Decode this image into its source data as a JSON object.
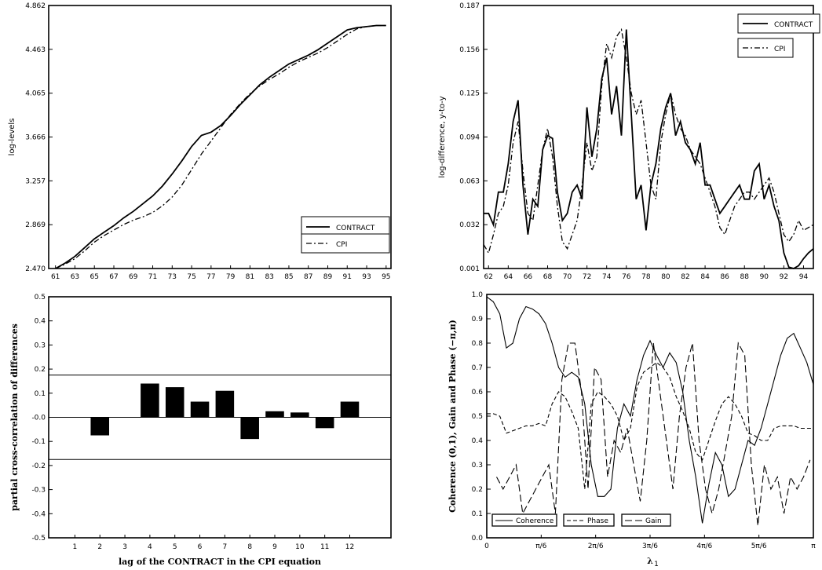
{
  "chart_data": [
    {
      "type": "line",
      "ylabel": "log-levels",
      "xlabel": "",
      "xlim": [
        60.3,
        95.5
      ],
      "ylim": [
        2.47,
        4.862
      ],
      "yticks": [
        "2.470",
        "2.869",
        "3.257",
        "3.666",
        "4.065",
        "4.463",
        "4.862"
      ],
      "xticks": [
        "61",
        "63",
        "65",
        "67",
        "69",
        "71",
        "73",
        "75",
        "77",
        "79",
        "81",
        "83",
        "85",
        "87",
        "89",
        "91",
        "93",
        "95"
      ],
      "legend": {
        "position": "bottom-right"
      },
      "series": [
        {
          "name": "CONTRACT",
          "style": "solid",
          "x": [
            61,
            62,
            63,
            64,
            65,
            66,
            67,
            68,
            69,
            70,
            71,
            72,
            73,
            74,
            75,
            76,
            77,
            78,
            79,
            80,
            81,
            82,
            83,
            84,
            85,
            86,
            87,
            88,
            89,
            90,
            91,
            92,
            93,
            94,
            95
          ],
          "y": [
            2.47,
            2.52,
            2.58,
            2.66,
            2.74,
            2.8,
            2.86,
            2.93,
            2.99,
            3.06,
            3.13,
            3.22,
            3.33,
            3.45,
            3.58,
            3.68,
            3.71,
            3.77,
            3.86,
            3.96,
            4.05,
            4.14,
            4.21,
            4.27,
            4.33,
            4.37,
            4.41,
            4.46,
            4.52,
            4.58,
            4.64,
            4.66,
            4.67,
            4.68,
            4.68
          ]
        },
        {
          "name": "CPI",
          "style": "dash-dot",
          "x": [
            61,
            62,
            63,
            64,
            65,
            66,
            67,
            68,
            69,
            70,
            71,
            72,
            73,
            74,
            75,
            76,
            77,
            78,
            79,
            80,
            81,
            82,
            83,
            84,
            85,
            86,
            87,
            88,
            89,
            90,
            91,
            92,
            93,
            94,
            95
          ],
          "y": [
            2.47,
            2.51,
            2.56,
            2.63,
            2.71,
            2.77,
            2.82,
            2.87,
            2.91,
            2.94,
            2.98,
            3.04,
            3.12,
            3.23,
            3.37,
            3.51,
            3.63,
            3.75,
            3.87,
            3.97,
            4.06,
            4.13,
            4.19,
            4.24,
            4.3,
            4.35,
            4.39,
            4.43,
            4.48,
            4.54,
            4.6,
            4.65,
            4.67,
            4.68,
            4.68
          ]
        }
      ]
    },
    {
      "type": "line",
      "ylabel": "log-difference, y-to-y",
      "xlabel": "",
      "xlim": [
        61.5,
        95.0
      ],
      "ylim": [
        0.001,
        0.187
      ],
      "yticks": [
        "0.001",
        "0.032",
        "0.063",
        "0.094",
        "0.125",
        "0.156",
        "0.187"
      ],
      "xticks": [
        "62",
        "64",
        "66",
        "68",
        "70",
        "72",
        "74",
        "76",
        "78",
        "80",
        "82",
        "84",
        "86",
        "88",
        "90",
        "92",
        "94"
      ],
      "legend": {
        "position": "top-right"
      },
      "series": [
        {
          "name": "CONTRACT",
          "style": "solid",
          "x": [
            61.5,
            62,
            62.5,
            63,
            63.5,
            64,
            64.5,
            65,
            65.5,
            66,
            66.5,
            67,
            67.5,
            68,
            68.5,
            69,
            69.5,
            70,
            70.5,
            71,
            71.5,
            72,
            72.5,
            73,
            73.5,
            74,
            74.5,
            75,
            75.5,
            76,
            76.5,
            77,
            77.5,
            78,
            78.5,
            79,
            79.5,
            80,
            80.5,
            81,
            81.5,
            82,
            82.5,
            83,
            83.5,
            84,
            84.5,
            85,
            85.5,
            86,
            86.5,
            87,
            87.5,
            88,
            88.5,
            89,
            89.5,
            90,
            90.5,
            91,
            91.5,
            92,
            92.5,
            93,
            93.5,
            94,
            94.5,
            95
          ],
          "y": [
            0.04,
            0.04,
            0.032,
            0.055,
            0.055,
            0.075,
            0.105,
            0.12,
            0.06,
            0.025,
            0.05,
            0.045,
            0.085,
            0.095,
            0.093,
            0.055,
            0.035,
            0.04,
            0.055,
            0.06,
            0.05,
            0.115,
            0.08,
            0.1,
            0.135,
            0.15,
            0.11,
            0.13,
            0.095,
            0.17,
            0.11,
            0.05,
            0.06,
            0.028,
            0.06,
            0.075,
            0.1,
            0.115,
            0.125,
            0.095,
            0.105,
            0.09,
            0.085,
            0.075,
            0.09,
            0.06,
            0.06,
            0.05,
            0.04,
            0.045,
            0.05,
            0.055,
            0.06,
            0.05,
            0.05,
            0.07,
            0.075,
            0.05,
            0.06,
            0.045,
            0.035,
            0.012,
            0.002,
            0.001,
            0.003,
            0.008,
            0.012,
            0.015
          ]
        },
        {
          "name": "CPI",
          "style": "dash-dot",
          "x": [
            61.5,
            62,
            62.5,
            63,
            63.5,
            64,
            64.5,
            65,
            65.5,
            66,
            66.5,
            67,
            67.5,
            68,
            68.5,
            69,
            69.5,
            70,
            70.5,
            71,
            71.5,
            72,
            72.5,
            73,
            73.5,
            74,
            74.5,
            75,
            75.5,
            76,
            76.5,
            77,
            77.5,
            78,
            78.5,
            79,
            79.5,
            80,
            80.5,
            81,
            81.5,
            82,
            82.5,
            83,
            83.5,
            84,
            84.5,
            85,
            85.5,
            86,
            86.5,
            87,
            87.5,
            88,
            88.5,
            89,
            89.5,
            90,
            90.5,
            91,
            91.5,
            92,
            92.5,
            93,
            93.5,
            94,
            94.5,
            95
          ],
          "y": [
            0.018,
            0.012,
            0.025,
            0.04,
            0.045,
            0.06,
            0.09,
            0.105,
            0.07,
            0.04,
            0.035,
            0.06,
            0.085,
            0.1,
            0.08,
            0.045,
            0.02,
            0.015,
            0.025,
            0.035,
            0.06,
            0.09,
            0.07,
            0.08,
            0.13,
            0.16,
            0.15,
            0.165,
            0.17,
            0.15,
            0.125,
            0.11,
            0.12,
            0.09,
            0.06,
            0.05,
            0.09,
            0.11,
            0.125,
            0.11,
            0.1,
            0.095,
            0.085,
            0.08,
            0.075,
            0.065,
            0.055,
            0.045,
            0.03,
            0.025,
            0.035,
            0.045,
            0.05,
            0.055,
            0.055,
            0.05,
            0.055,
            0.06,
            0.065,
            0.055,
            0.04,
            0.025,
            0.02,
            0.025,
            0.035,
            0.028,
            0.03,
            0.032
          ]
        }
      ]
    },
    {
      "type": "bar",
      "ylabel": "partial cross-correlation of differences",
      "xlabel": "lag of the CONTRACT in the CPI equation",
      "ylim": [
        -0.5,
        0.5
      ],
      "yticks": [
        "0.5",
        "0.4",
        "0.3",
        "0.2",
        "0.1",
        "-0.0",
        "-0.1",
        "-0.2",
        "-0.3",
        "-0.4",
        "-0.5"
      ],
      "categories": [
        "1",
        "2",
        "3",
        "4",
        "5",
        "6",
        "7",
        "8",
        "9",
        "10",
        "11",
        "12"
      ],
      "values": [
        0,
        -0.075,
        0,
        0.14,
        0.125,
        0.065,
        0.11,
        -0.09,
        0.025,
        0.02,
        -0.045,
        0.065
      ],
      "reference_lines": [
        0.175,
        -0.175
      ]
    },
    {
      "type": "line",
      "ylabel": "Coherence (0,1), Gain and Phase (−π,π)",
      "xlabel": "λ",
      "xlabel_subscript": "1",
      "ylim": [
        0.0,
        1.0
      ],
      "yticks": [
        "0.0",
        "0.1",
        "0.2",
        "0.3",
        "0.4",
        "0.5",
        "0.6",
        "0.7",
        "0.8",
        "0.9",
        "1.0"
      ],
      "xticks": [
        "0",
        "π/6",
        "2π/6",
        "3π/6",
        "4π/6",
        "5π/6",
        "π"
      ],
      "xlim": [
        0,
        1
      ],
      "legend": {
        "position": "bottom-left"
      },
      "series": [
        {
          "name": "Coherence",
          "style": "solid",
          "x": [
            0,
            0.02,
            0.04,
            0.06,
            0.08,
            0.1,
            0.12,
            0.14,
            0.16,
            0.18,
            0.2,
            0.22,
            0.24,
            0.26,
            0.28,
            0.3,
            0.32,
            0.34,
            0.36,
            0.38,
            0.4,
            0.42,
            0.44,
            0.46,
            0.48,
            0.5,
            0.52,
            0.54,
            0.56,
            0.58,
            0.6,
            0.62,
            0.64,
            0.66,
            0.68,
            0.7,
            0.72,
            0.74,
            0.76,
            0.78,
            0.8,
            0.82,
            0.84,
            0.86,
            0.88,
            0.9,
            0.92,
            0.94,
            0.96,
            0.98,
            1.0
          ],
          "y": [
            0.99,
            0.97,
            0.92,
            0.78,
            0.8,
            0.9,
            0.95,
            0.94,
            0.92,
            0.88,
            0.8,
            0.7,
            0.66,
            0.68,
            0.66,
            0.55,
            0.3,
            0.17,
            0.17,
            0.2,
            0.45,
            0.55,
            0.5,
            0.65,
            0.75,
            0.81,
            0.75,
            0.7,
            0.76,
            0.72,
            0.6,
            0.4,
            0.25,
            0.06,
            0.22,
            0.35,
            0.3,
            0.17,
            0.2,
            0.3,
            0.4,
            0.38,
            0.45,
            0.55,
            0.65,
            0.75,
            0.82,
            0.84,
            0.78,
            0.72,
            0.63
          ]
        },
        {
          "name": "Phase",
          "style": "dashed",
          "x": [
            0,
            0.02,
            0.04,
            0.06,
            0.08,
            0.1,
            0.12,
            0.14,
            0.16,
            0.18,
            0.2,
            0.22,
            0.24,
            0.26,
            0.28,
            0.3,
            0.32,
            0.34,
            0.36,
            0.38,
            0.4,
            0.42,
            0.44,
            0.46,
            0.48,
            0.5,
            0.52,
            0.54,
            0.56,
            0.58,
            0.6,
            0.62,
            0.64,
            0.66,
            0.68,
            0.7,
            0.72,
            0.74,
            0.76,
            0.78,
            0.8,
            0.82,
            0.84,
            0.86,
            0.88,
            0.9,
            0.92,
            0.94,
            0.96,
            0.98,
            1.0
          ],
          "y": [
            0.51,
            0.51,
            0.5,
            0.43,
            0.44,
            0.45,
            0.46,
            0.46,
            0.47,
            0.46,
            0.55,
            0.6,
            0.58,
            0.52,
            0.45,
            0.2,
            0.55,
            0.6,
            0.58,
            0.55,
            0.5,
            0.4,
            0.45,
            0.62,
            0.68,
            0.7,
            0.72,
            0.7,
            0.66,
            0.58,
            0.52,
            0.45,
            0.35,
            0.32,
            0.4,
            0.48,
            0.55,
            0.58,
            0.55,
            0.5,
            0.43,
            0.42,
            0.4,
            0.4,
            0.45,
            0.46,
            0.46,
            0.46,
            0.45,
            0.45,
            0.45
          ]
        },
        {
          "name": "Gain",
          "style": "long-dash",
          "x": [
            0.03,
            0.05,
            0.07,
            0.09,
            0.11,
            0.13,
            0.15,
            0.17,
            0.19,
            0.21,
            0.23,
            0.25,
            0.27,
            0.29,
            0.31,
            0.33,
            0.35,
            0.37,
            0.39,
            0.41,
            0.43,
            0.45,
            0.47,
            0.49,
            0.51,
            0.53,
            0.55,
            0.57,
            0.59,
            0.61,
            0.63,
            0.65,
            0.67,
            0.69,
            0.71,
            0.73,
            0.75,
            0.77,
            0.79,
            0.81,
            0.83,
            0.85,
            0.87,
            0.89,
            0.91,
            0.93,
            0.95,
            0.97,
            0.99
          ],
          "y": [
            0.25,
            0.2,
            0.25,
            0.3,
            0.1,
            0.15,
            0.2,
            0.25,
            0.3,
            0.1,
            0.65,
            0.8,
            0.8,
            0.6,
            0.2,
            0.7,
            0.65,
            0.25,
            0.4,
            0.35,
            0.45,
            0.3,
            0.15,
            0.4,
            0.8,
            0.6,
            0.4,
            0.2,
            0.5,
            0.7,
            0.8,
            0.4,
            0.2,
            0.1,
            0.2,
            0.35,
            0.5,
            0.8,
            0.75,
            0.3,
            0.05,
            0.3,
            0.2,
            0.25,
            0.1,
            0.25,
            0.2,
            0.25,
            0.32
          ]
        }
      ]
    }
  ]
}
